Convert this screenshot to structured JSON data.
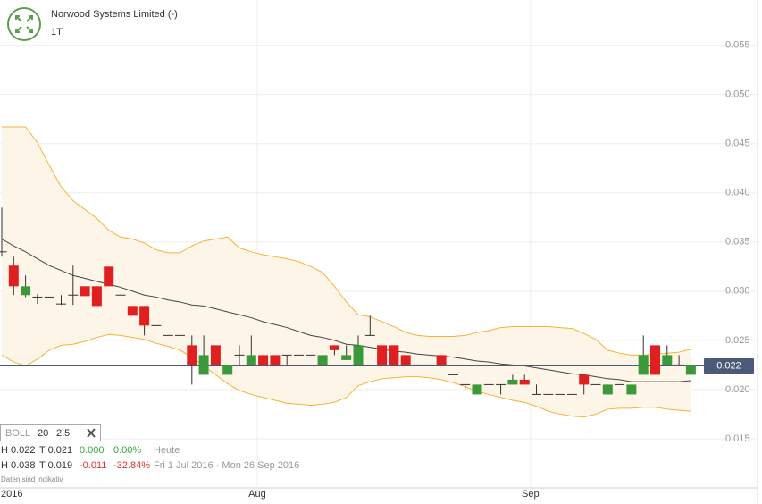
{
  "header": {
    "title": "Norwood Systems Limited (-)",
    "period": "1T"
  },
  "indicator": {
    "name": "BOLL",
    "period": 20,
    "width": 2.5
  },
  "stats": [
    {
      "high": "H 0.022",
      "low": "T 0.021",
      "change": "0.000",
      "change_pct": "0.00%",
      "range": "Heute"
    },
    {
      "high": "H 0.038",
      "low": "T 0.019",
      "change": "-0.011",
      "change_pct": "-32.84%",
      "range": "Fri 1 Jul 2016 - Mon 26 Sep 2016"
    }
  ],
  "disclaimer": "Daten sind indikativ",
  "chart_data": {
    "type": "candlestick",
    "categories": [
      "2016",
      null,
      null,
      null,
      null,
      null,
      null,
      null,
      null,
      null,
      null,
      null,
      null,
      null,
      null,
      null,
      null,
      null,
      null,
      null,
      null,
      null,
      "Aug",
      null,
      null,
      null,
      null,
      null,
      null,
      null,
      null,
      null,
      null,
      null,
      null,
      null,
      null,
      null,
      null,
      null,
      null,
      null,
      null,
      null,
      null,
      "Sep",
      null,
      null,
      null,
      null,
      null,
      null,
      null,
      null,
      null,
      null,
      null,
      null,
      null
    ],
    "open": [
      0.034,
      0.0326,
      0.0296,
      0.0294,
      0.0294,
      0.0287,
      0.0296,
      0.0305,
      0.0305,
      0.0325,
      0.0296,
      0.0285,
      0.0285,
      0.0265,
      0.0255,
      0.0255,
      0.0245,
      0.0215,
      0.0245,
      0.0215,
      0.0235,
      0.0225,
      0.0235,
      0.0235,
      0.0235,
      0.0235,
      0.0235,
      0.0225,
      0.0245,
      0.023,
      0.0225,
      0.0255,
      0.0245,
      0.0245,
      0.0235,
      0.0225,
      0.0225,
      0.0235,
      0.0215,
      0.0205,
      0.0195,
      0.0205,
      0.0205,
      0.0205,
      0.021,
      0.0195,
      0.0195,
      0.0195,
      0.0195,
      0.0215,
      0.0205,
      0.0195,
      0.0205,
      0.0195,
      0.0215,
      0.0245,
      0.0225,
      0.0225,
      0.0215
    ],
    "high": [
      0.0385,
      0.0335,
      0.0316,
      0.0297,
      0.0294,
      0.0296,
      0.0326,
      0.0305,
      0.0305,
      0.0325,
      0.0296,
      0.0285,
      0.0285,
      0.0265,
      0.0255,
      0.0255,
      0.0255,
      0.0255,
      0.0245,
      0.0225,
      0.0245,
      0.0255,
      0.0235,
      0.0235,
      0.0235,
      0.0235,
      0.0235,
      0.0235,
      0.0245,
      0.0245,
      0.0255,
      0.0275,
      0.0245,
      0.0245,
      0.0235,
      0.0225,
      0.0225,
      0.0235,
      0.0215,
      0.0205,
      0.0205,
      0.0205,
      0.0205,
      0.0215,
      0.0215,
      0.0205,
      0.0195,
      0.0195,
      0.0195,
      0.0215,
      0.0205,
      0.0205,
      0.0205,
      0.0205,
      0.0255,
      0.0245,
      0.0245,
      0.0235,
      0.0225
    ],
    "low": [
      0.0335,
      0.0296,
      0.0294,
      0.0287,
      0.0294,
      0.0286,
      0.0286,
      0.0295,
      0.0285,
      0.0305,
      0.0296,
      0.0275,
      0.0255,
      0.0265,
      0.0255,
      0.0255,
      0.0205,
      0.0215,
      0.0225,
      0.0215,
      0.0225,
      0.0225,
      0.0225,
      0.0225,
      0.0225,
      0.0235,
      0.0235,
      0.0225,
      0.0235,
      0.023,
      0.0225,
      0.0255,
      0.0225,
      0.0225,
      0.0225,
      0.0225,
      0.0225,
      0.0225,
      0.0215,
      0.02,
      0.0195,
      0.0205,
      0.0195,
      0.0205,
      0.0205,
      0.0195,
      0.0195,
      0.0195,
      0.0195,
      0.0195,
      0.0205,
      0.0195,
      0.0205,
      0.0195,
      0.0215,
      0.0215,
      0.0225,
      0.0225,
      0.0215
    ],
    "close": [
      0.034,
      0.0305,
      0.0305,
      0.0294,
      0.0294,
      0.0287,
      0.0296,
      0.0295,
      0.0285,
      0.0305,
      0.0296,
      0.0275,
      0.0265,
      0.0265,
      0.0255,
      0.0255,
      0.0225,
      0.0235,
      0.0225,
      0.0225,
      0.0235,
      0.0235,
      0.0225,
      0.0225,
      0.0235,
      0.0235,
      0.0235,
      0.0235,
      0.024,
      0.0235,
      0.0245,
      0.0255,
      0.0225,
      0.0225,
      0.0225,
      0.0225,
      0.0225,
      0.0225,
      0.0215,
      0.0205,
      0.0205,
      0.0205,
      0.0205,
      0.021,
      0.0205,
      0.0195,
      0.0195,
      0.0195,
      0.0195,
      0.0205,
      0.0205,
      0.0205,
      0.0205,
      0.0205,
      0.0235,
      0.0215,
      0.0235,
      0.0225,
      0.0225
    ],
    "up_color": "#3a9a3a",
    "down_color": "#e02020",
    "flat_color": "#333333",
    "bollinger": {
      "upper": [
        0.0467,
        0.0467,
        0.0467,
        0.0451,
        0.0428,
        0.0406,
        0.0392,
        0.0383,
        0.0374,
        0.0362,
        0.0355,
        0.0353,
        0.0349,
        0.0342,
        0.0339,
        0.0339,
        0.0346,
        0.0351,
        0.0353,
        0.0355,
        0.0344,
        0.034,
        0.0337,
        0.0335,
        0.0333,
        0.033,
        0.0325,
        0.0319,
        0.0305,
        0.0289,
        0.0276,
        0.0274,
        0.0269,
        0.0264,
        0.0258,
        0.0255,
        0.0254,
        0.0254,
        0.0254,
        0.0255,
        0.0258,
        0.026,
        0.0263,
        0.0264,
        0.0264,
        0.0264,
        0.0264,
        0.0263,
        0.0262,
        0.0257,
        0.0251,
        0.024,
        0.0237,
        0.0235,
        0.0235,
        0.0236,
        0.0237,
        0.0238,
        0.0241
      ],
      "middle": [
        0.0353,
        0.0346,
        0.034,
        0.0333,
        0.0326,
        0.0321,
        0.0316,
        0.0313,
        0.031,
        0.0307,
        0.0304,
        0.03,
        0.0296,
        0.0294,
        0.0291,
        0.0289,
        0.0286,
        0.0285,
        0.0282,
        0.0279,
        0.0276,
        0.0273,
        0.0269,
        0.0266,
        0.0263,
        0.0259,
        0.0255,
        0.0253,
        0.025,
        0.0246,
        0.0245,
        0.0243,
        0.0241,
        0.0239,
        0.0238,
        0.0236,
        0.0235,
        0.0234,
        0.0233,
        0.0231,
        0.0229,
        0.0228,
        0.0226,
        0.0225,
        0.0224,
        0.0222,
        0.022,
        0.0218,
        0.0216,
        0.0215,
        0.0213,
        0.0211,
        0.021,
        0.0208,
        0.0208,
        0.0208,
        0.0208,
        0.0208,
        0.0209
      ],
      "lower": [
        0.0235,
        0.0228,
        0.0224,
        0.0231,
        0.024,
        0.0245,
        0.0246,
        0.0249,
        0.0253,
        0.0256,
        0.0255,
        0.0253,
        0.0251,
        0.0247,
        0.0244,
        0.024,
        0.0233,
        0.0224,
        0.0215,
        0.0206,
        0.0199,
        0.0195,
        0.0192,
        0.0189,
        0.0186,
        0.0185,
        0.0184,
        0.0185,
        0.0187,
        0.0192,
        0.0204,
        0.0208,
        0.0211,
        0.0212,
        0.0213,
        0.0213,
        0.0212,
        0.021,
        0.0207,
        0.0203,
        0.0198,
        0.0195,
        0.0192,
        0.0189,
        0.0187,
        0.0183,
        0.0178,
        0.0175,
        0.0173,
        0.0172,
        0.0175,
        0.018,
        0.0181,
        0.0181,
        0.0182,
        0.0182,
        0.018,
        0.0179,
        0.0178
      ],
      "band_color": "#f5b335",
      "middle_color": "#444444",
      "fill_color": "#fdf5e8"
    },
    "last_price": {
      "value": 0.0224,
      "label": "0.022",
      "color": "#4a5a78"
    },
    "ylim": [
      0.01,
      0.0596
    ],
    "yticks": [
      0.015,
      {
        "value": 0.02,
        "label": "0.020"
      },
      0.025,
      {
        "value": 0.03,
        "label": "0.030"
      },
      0.035,
      {
        "value": 0.04,
        "label": "0.040"
      },
      0.045,
      {
        "value": 0.05,
        "label": "0.050"
      },
      0.055
    ],
    "grid": true
  }
}
